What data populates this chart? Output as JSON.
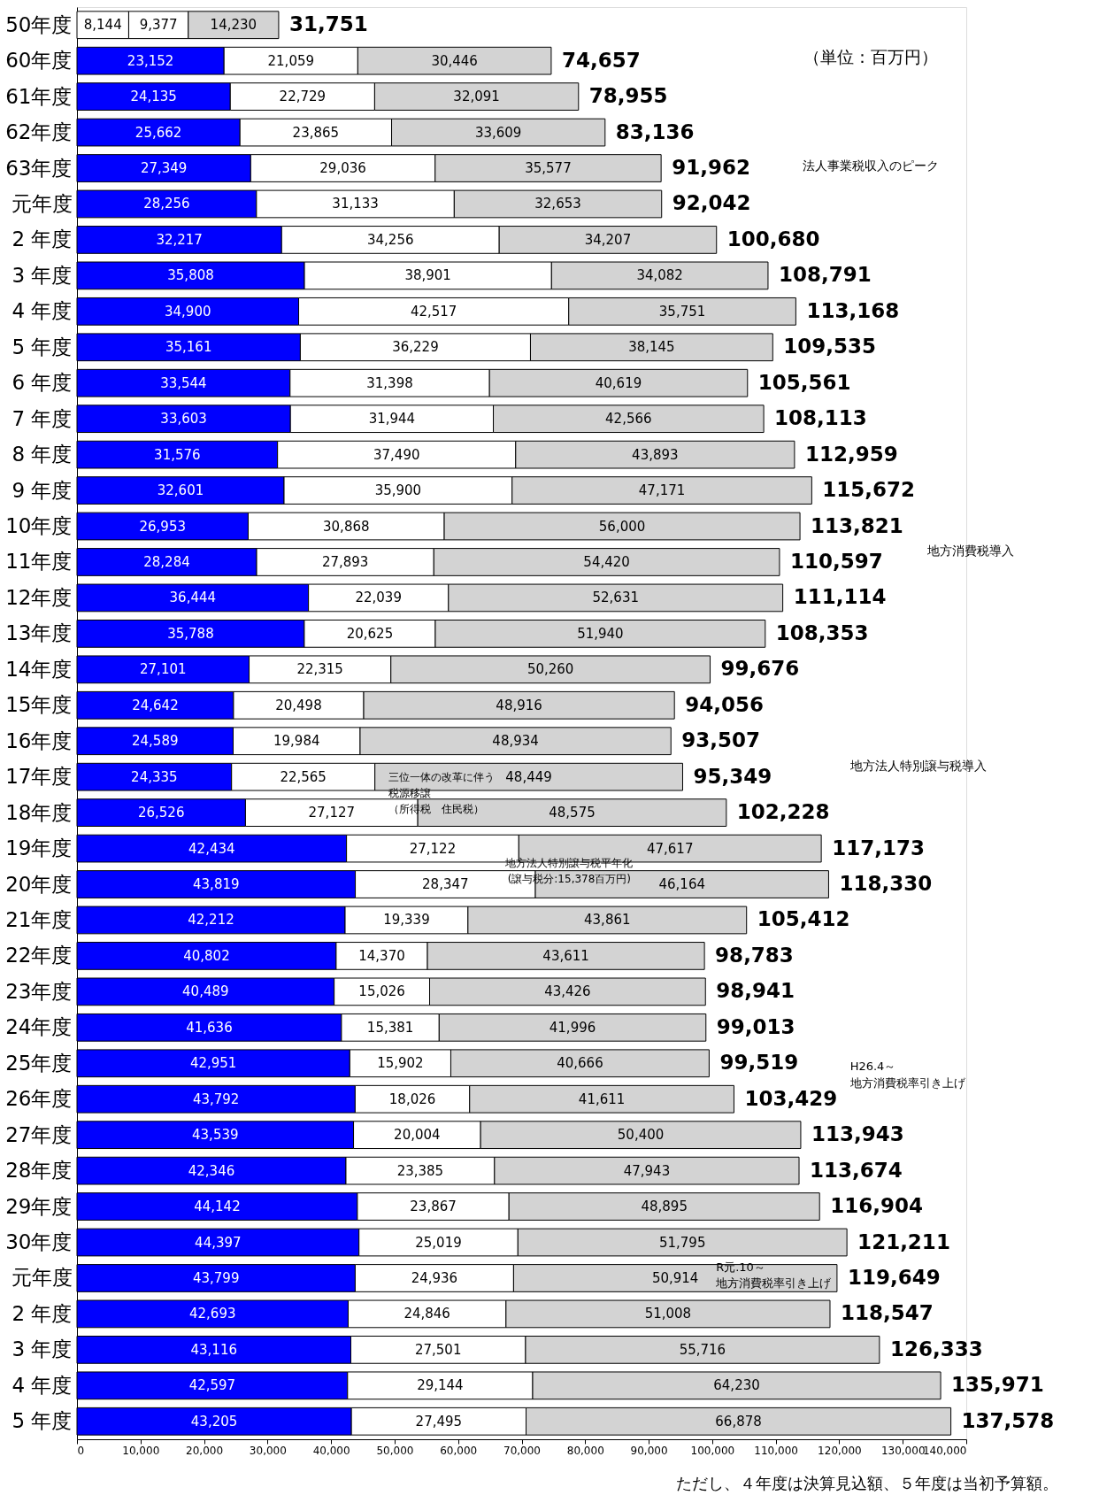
{
  "chart_data": {
    "type": "bar",
    "orientation": "horizontal",
    "stacked": true,
    "grid": false,
    "categories": [
      "50年度",
      "60年度",
      "61年度",
      "62年度",
      "63年度",
      "元年度",
      "2 年度",
      "3 年度",
      "4 年度",
      "5 年度",
      "6 年度",
      "7 年度",
      "8 年度",
      "9 年度",
      "10年度",
      "11年度",
      "12年度",
      "13年度",
      "14年度",
      "15年度",
      "16年度",
      "17年度",
      "18年度",
      "19年度",
      "20年度",
      "21年度",
      "22年度",
      "23年度",
      "24年度",
      "25年度",
      "26年度",
      "27年度",
      "28年度",
      "29年度",
      "30年度",
      "元年度",
      "2 年度",
      "3 年度",
      "4 年度",
      "5 年度"
    ],
    "series": [
      {
        "color": "#0000ff",
        "colors": [
          "#ffffff",
          "#0000ff",
          "#0000ff",
          "#0000ff",
          "#0000ff",
          "#0000ff",
          "#0000ff",
          "#0000ff",
          "#0000ff",
          "#0000ff",
          "#0000ff",
          "#0000ff",
          "#0000ff",
          "#0000ff",
          "#0000ff",
          "#0000ff",
          "#0000ff",
          "#0000ff",
          "#0000ff",
          "#0000ff",
          "#0000ff",
          "#0000ff",
          "#0000ff",
          "#0000ff",
          "#0000ff",
          "#0000ff",
          "#0000ff",
          "#0000ff",
          "#0000ff",
          "#0000ff",
          "#0000ff",
          "#0000ff",
          "#0000ff",
          "#0000ff",
          "#0000ff",
          "#0000ff",
          "#0000ff",
          "#0000ff",
          "#0000ff",
          "#0000ff"
        ],
        "values": [
          8144,
          23152,
          24135,
          25662,
          27349,
          28256,
          32217,
          35808,
          34900,
          35161,
          33544,
          33603,
          31576,
          32601,
          26953,
          28284,
          36444,
          35788,
          27101,
          24642,
          24589,
          24335,
          26526,
          42434,
          43819,
          42212,
          40802,
          40489,
          41636,
          42951,
          43792,
          43539,
          42346,
          44142,
          44397,
          43799,
          42693,
          43116,
          42597,
          43205
        ],
        "value_labels": [
          "8,144",
          "23,152",
          "24,135",
          "25,662",
          "27,349",
          "28,256",
          "32,217",
          "35,808",
          "34,900",
          "35,161",
          "33,544",
          "33,603",
          "31,576",
          "32,601",
          "26,953",
          "28,284",
          "36,444",
          "35,788",
          "27,101",
          "24,642",
          "24,589",
          "24,335",
          "26,526",
          "42,434",
          "43,819",
          "42,212",
          "40,802",
          "40,489",
          "41,636",
          "42,951",
          "43,792",
          "43,539",
          "42,346",
          "44,142",
          "44,397",
          "43,799",
          "42,693",
          "43,116",
          "42,597",
          "43,205"
        ]
      },
      {
        "color": "#ffffff",
        "values": [
          9377,
          21059,
          22729,
          23865,
          29036,
          31133,
          34256,
          38901,
          42517,
          36229,
          31398,
          31944,
          37490,
          35900,
          30868,
          27893,
          22039,
          20625,
          22315,
          20498,
          19984,
          22565,
          27127,
          27122,
          28347,
          19339,
          14370,
          15026,
          15381,
          15902,
          18026,
          20004,
          23385,
          23867,
          25019,
          24936,
          24846,
          27501,
          29144,
          27495
        ],
        "value_labels": [
          "9,377",
          "21,059",
          "22,729",
          "23,865",
          "29,036",
          "31,133",
          "34,256",
          "38,901",
          "42,517",
          "36,229",
          "31,398",
          "31,944",
          "37,490",
          "35,900",
          "30,868",
          "27,893",
          "22,039",
          "20,625",
          "22,315",
          "20,498",
          "19,984",
          "22,565",
          "27,127",
          "27,122",
          "28,347",
          "19,339",
          "14,370",
          "15,026",
          "15,381",
          "15,902",
          "18,026",
          "20,004",
          "23,385",
          "23,867",
          "25,019",
          "24,936",
          "24,846",
          "27,501",
          "29,144",
          "27,495"
        ]
      },
      {
        "color": "#d3d3d3",
        "values": [
          14230,
          30446,
          32091,
          33609,
          35577,
          32653,
          34207,
          34082,
          35751,
          38145,
          40619,
          42566,
          43893,
          47171,
          56000,
          54420,
          52631,
          51940,
          50260,
          48916,
          48934,
          48449,
          48575,
          47617,
          46164,
          43861,
          43611,
          43426,
          41996,
          40666,
          41611,
          50400,
          47943,
          48895,
          51795,
          50914,
          51008,
          55716,
          64230,
          66878
        ],
        "value_labels": [
          "14,230",
          "30,446",
          "32,091",
          "33,609",
          "35,577",
          "32,653",
          "34,207",
          "34,082",
          "35,751",
          "38,145",
          "40,619",
          "42,566",
          "43,893",
          "47,171",
          "56,000",
          "54,420",
          "52,631",
          "51,940",
          "50,260",
          "48,916",
          "48,934",
          "48,449",
          "48,575",
          "47,617",
          "46,164",
          "43,861",
          "43,611",
          "43,426",
          "41,996",
          "40,666",
          "41,611",
          "50,400",
          "47,943",
          "48,895",
          "51,795",
          "50,914",
          "51,008",
          "55,716",
          "64,230",
          "66,878"
        ]
      }
    ],
    "totals": [
      "31,751",
      "74,657",
      "78,955",
      "83,136",
      "91,962",
      "92,042",
      "100,680",
      "108,791",
      "113,168",
      "109,535",
      "105,561",
      "108,113",
      "112,959",
      "115,672",
      "113,821",
      "110,597",
      "111,114",
      "108,353",
      "99,676",
      "94,056",
      "93,507",
      "95,349",
      "102,228",
      "117,173",
      "118,330",
      "105,412",
      "98,783",
      "98,941",
      "99,013",
      "99,519",
      "103,429",
      "113,943",
      "113,674",
      "116,904",
      "121,211",
      "119,649",
      "118,547",
      "126,333",
      "135,971",
      "137,578"
    ],
    "xlim": [
      0,
      140000
    ],
    "xticks": [
      {
        "value": 0,
        "label": "0"
      },
      {
        "value": 10000,
        "label": "10,000"
      },
      {
        "value": 20000,
        "label": "20,000"
      },
      {
        "value": 30000,
        "label": "30,000"
      },
      {
        "value": 40000,
        "label": "40,000"
      },
      {
        "value": 50000,
        "label": "50,000"
      },
      {
        "value": 60000,
        "label": "60,000"
      },
      {
        "value": 70000,
        "label": "70,000"
      },
      {
        "value": 80000,
        "label": "80,000"
      },
      {
        "value": 90000,
        "label": "90,000"
      },
      {
        "value": 100000,
        "label": "100,000"
      },
      {
        "value": 110000,
        "label": "110,000"
      },
      {
        "value": 120000,
        "label": "120,000"
      },
      {
        "value": 130000,
        "label": "130,000"
      },
      {
        "value": 140000,
        "label": "140,000"
      }
    ],
    "annotations": [
      "（単位：百万円）",
      "法人事業税収入のピーク",
      "地方消費税導入",
      "三位一体の改革に伴う",
      "税源移譲",
      "（所得税　住民税）",
      "地方法人特別譲与税導入",
      "地方法人特別譲与税平年化",
      "(譲与税分:15,378百万円)",
      "H26.4～",
      "地方消費税率引き上げ",
      "R元.10～",
      "地方消費税率引き上げ",
      "ただし、４年度は決算見込額、５年度は当初予算額。"
    ]
  }
}
